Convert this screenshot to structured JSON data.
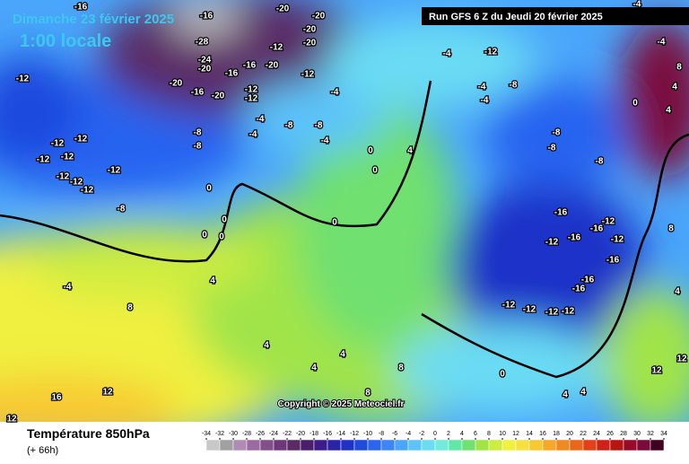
{
  "header": {
    "date": "Dimanche 23 février 2025",
    "time": "1:00 locale",
    "run": "Run GFS 6 Z du Jeudi 20 février 2025"
  },
  "copyright": "Copyright © 2025 Meteociel.fr",
  "legend": {
    "title": "Température 850hPa",
    "subtitle": "(+ 66h)",
    "ticks": [
      -34,
      -32,
      -30,
      -28,
      -26,
      -24,
      -22,
      -20,
      -18,
      -16,
      -14,
      -12,
      -10,
      -8,
      -6,
      -4,
      -2,
      0,
      2,
      4,
      6,
      8,
      10,
      12,
      14,
      16,
      18,
      20,
      22,
      24,
      26,
      28,
      30,
      32,
      34
    ],
    "colors": [
      "#c8c8c8",
      "#a0a0a0",
      "#b08cb4",
      "#9a6aa0",
      "#84508c",
      "#6e3878",
      "#5a2a66",
      "#4a1e6a",
      "#3c1c8c",
      "#2a22a8",
      "#1e32c8",
      "#1e4ade",
      "#2864f0",
      "#3a86f8",
      "#4aa6fa",
      "#5cc4fa",
      "#6adcf4",
      "#70ecd8",
      "#60e8a8",
      "#70e070",
      "#a0e448",
      "#ccec40",
      "#f0f040",
      "#f8e040",
      "#f8c830",
      "#f8a828",
      "#f48820",
      "#ee6418",
      "#e44018",
      "#d02018",
      "#b81414",
      "#9a0a28",
      "#7a0a3c",
      "#400020"
    ]
  },
  "contour_labels": [
    -16,
    -20,
    -20,
    -16,
    -28,
    -20,
    -20,
    -24,
    -20,
    -12,
    -20,
    -16,
    -16,
    -20,
    -16,
    -20,
    -12,
    -12,
    -12,
    -12,
    -8,
    -8,
    -8,
    -8,
    -4,
    -4,
    -4,
    -4,
    -12,
    -4,
    -8,
    -4,
    -4,
    -12,
    -12,
    -12,
    -12,
    -12,
    -12,
    -12,
    -12,
    -8,
    0,
    0,
    0,
    0,
    0,
    0,
    0,
    4,
    -16,
    -12,
    -16,
    -16,
    -12,
    -12,
    -16,
    -16,
    -16,
    -12,
    -12,
    -12,
    -12,
    -8,
    -8,
    -8,
    0,
    4,
    4,
    12,
    12,
    8,
    4,
    -4,
    4,
    8,
    4,
    4,
    8,
    4,
    8,
    12,
    16,
    12,
    -4,
    -4,
    4,
    4,
    8,
    0
  ]
}
